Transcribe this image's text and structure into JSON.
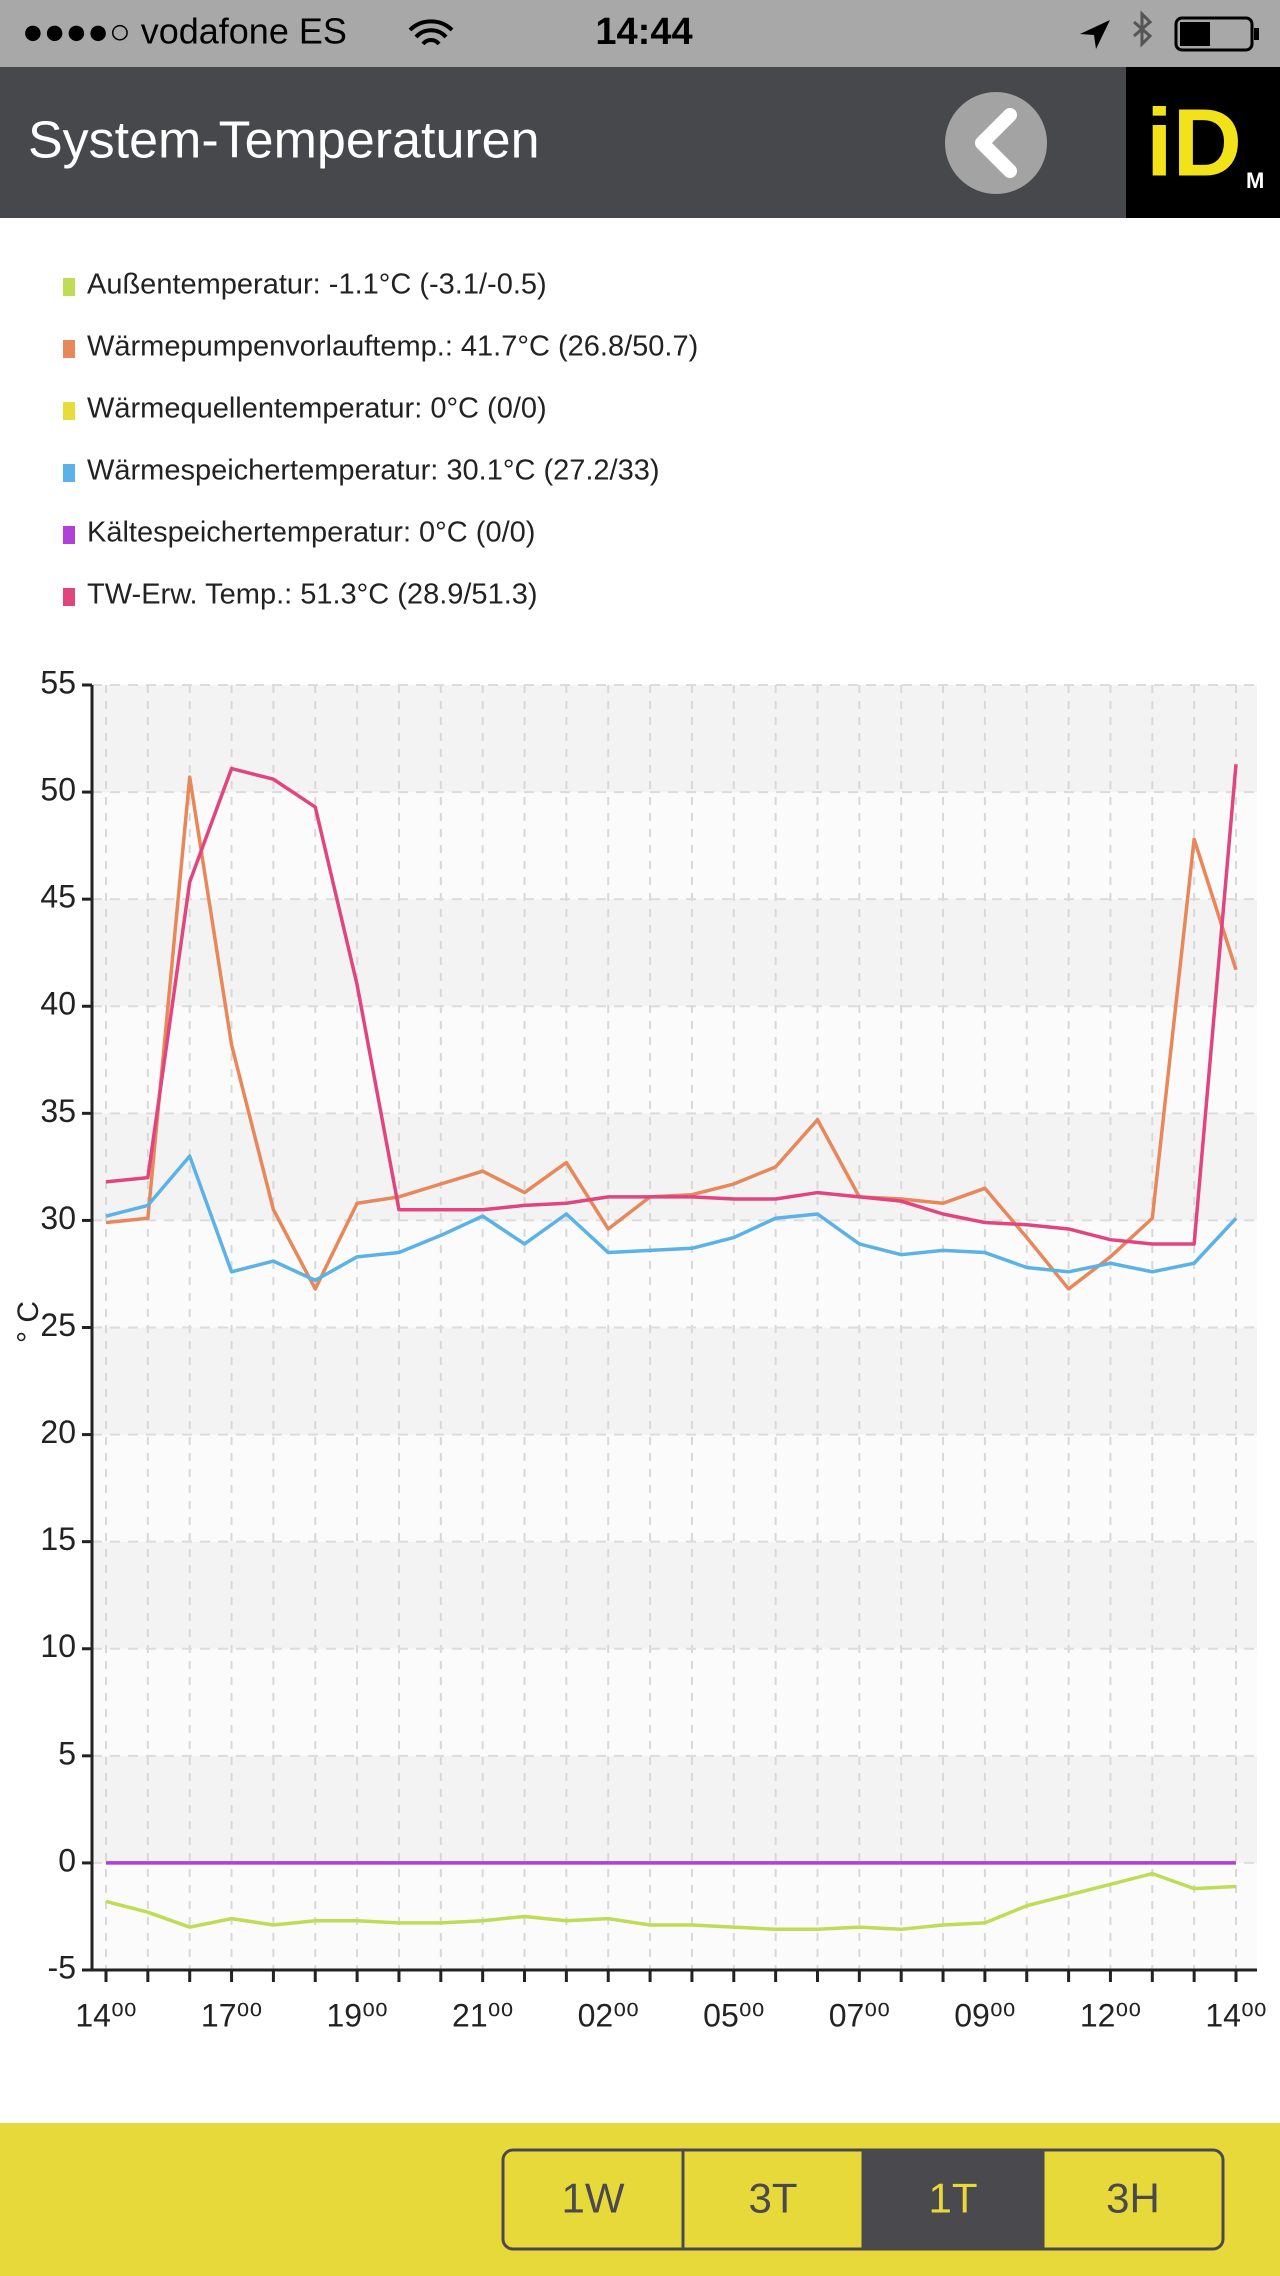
{
  "status_bar": {
    "carrier": "●●●●○ vodafone ES",
    "time": "14:44"
  },
  "header": {
    "title": "System-Temperaturen",
    "logo": "iD",
    "logo_sub": "M"
  },
  "chart_data": {
    "type": "line",
    "y_label": "° C",
    "categories": [
      "14⁰⁰",
      null,
      null,
      "17⁰⁰",
      null,
      null,
      "19⁰⁰",
      null,
      null,
      "21⁰⁰",
      null,
      null,
      "02⁰⁰",
      null,
      null,
      "05⁰⁰",
      null,
      null,
      "07⁰⁰",
      null,
      null,
      "09⁰⁰",
      null,
      null,
      "12⁰⁰",
      null,
      null,
      "14⁰⁰"
    ],
    "series": [
      {
        "name": "Außentemperatur: -1.1°C (-3.1/-0.5)",
        "color": "#bfdc55",
        "values": [
          -1.8,
          -2.3,
          -3.0,
          -2.6,
          -2.9,
          -2.7,
          -2.7,
          -2.8,
          -2.8,
          -2.7,
          -2.5,
          -2.7,
          -2.6,
          -2.9,
          -2.9,
          -3.0,
          -3.1,
          -3.1,
          -3.0,
          -3.1,
          -2.9,
          -2.8,
          -2.0,
          -1.5,
          -1.0,
          -0.5,
          -1.2,
          -1.1
        ]
      },
      {
        "name": "Wärmepumpenvorlauftemp.: 41.7°C (26.8/50.7)",
        "color": "#e8875a",
        "values": [
          29.9,
          30.1,
          50.7,
          38.2,
          30.5,
          26.8,
          30.8,
          31.1,
          31.7,
          32.3,
          31.3,
          32.7,
          29.6,
          31.1,
          31.2,
          31.7,
          32.5,
          34.7,
          31.1,
          31.0,
          30.8,
          31.5,
          29.2,
          26.8,
          28.3,
          30.1,
          47.8,
          41.7
        ]
      },
      {
        "name": "Wärmequellentemperatur: 0°C (0/0)",
        "color": "#e6dc3a",
        "values": [
          0,
          0,
          0,
          0,
          0,
          0,
          0,
          0,
          0,
          0,
          0,
          0,
          0,
          0,
          0,
          0,
          0,
          0,
          0,
          0,
          0,
          0,
          0,
          0,
          0,
          0,
          0,
          0
        ]
      },
      {
        "name": "Wärmespeichertemperatur: 30.1°C (27.2/33)",
        "color": "#5ab2e6",
        "values": [
          30.2,
          30.7,
          33.0,
          27.6,
          28.1,
          27.2,
          28.3,
          28.5,
          29.3,
          30.2,
          28.9,
          30.3,
          28.5,
          28.6,
          28.7,
          29.2,
          30.1,
          30.3,
          28.9,
          28.4,
          28.6,
          28.5,
          27.8,
          27.6,
          28.0,
          27.6,
          28.0,
          30.1
        ]
      },
      {
        "name": "Kältespeichertemperatur: 0°C (0/0)",
        "color": "#b040d8",
        "values": [
          0,
          0,
          0,
          0,
          0,
          0,
          0,
          0,
          0,
          0,
          0,
          0,
          0,
          0,
          0,
          0,
          0,
          0,
          0,
          0,
          0,
          0,
          0,
          0,
          0,
          0,
          0,
          0
        ]
      },
      {
        "name": "TW-Erw. Temp.: 51.3°C (28.9/51.3)",
        "color": "#e0457f",
        "values": [
          31.8,
          32.0,
          45.8,
          51.1,
          50.6,
          49.3,
          41.0,
          30.5,
          30.5,
          30.5,
          30.7,
          30.8,
          31.1,
          31.1,
          31.1,
          31.0,
          31.0,
          31.3,
          31.1,
          30.9,
          30.3,
          29.9,
          29.8,
          29.6,
          29.1,
          28.9,
          28.9,
          51.3
        ]
      }
    ],
    "ylim": [
      -5,
      55
    ],
    "yticks": [
      -5,
      0,
      5,
      10,
      15,
      20,
      25,
      30,
      35,
      40,
      45,
      50,
      55
    ],
    "grid": true
  },
  "range_buttons": {
    "options": [
      "1W",
      "3T",
      "1T",
      "3H"
    ],
    "selected": 2
  }
}
